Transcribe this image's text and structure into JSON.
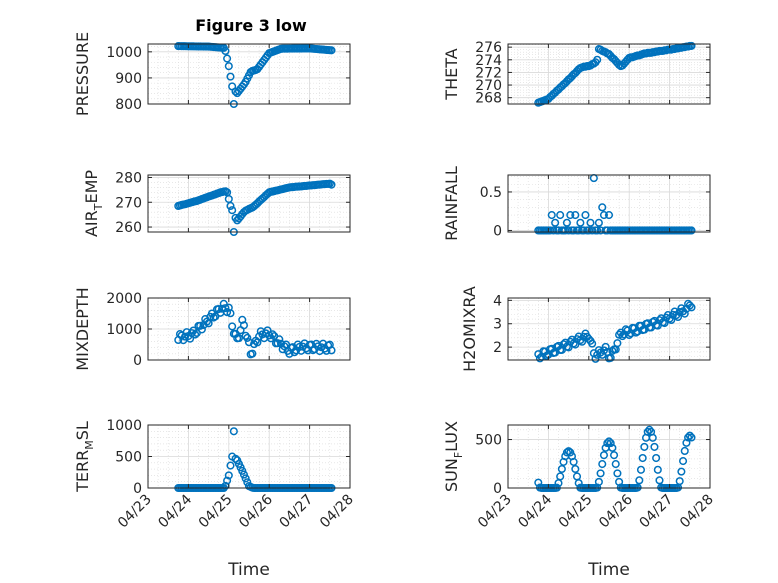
{
  "figure": {
    "title": "Figure 3 low"
  },
  "style": {
    "marker_color": "#0072bd",
    "grid_color": "#d9d9d9",
    "axis_color": "#262626"
  },
  "chart_data": [
    {
      "type": "scatter",
      "ylabel": "PRESSURE",
      "xlim": [
        "2023-04-23",
        "2023-04-28"
      ],
      "ylim": [
        800,
        1030
      ],
      "yticks": [
        800,
        900,
        1000
      ],
      "xticklabels": [],
      "xlabel": "",
      "grid": true,
      "series": [
        {
          "x": [],
          "y": []
        }
      ]
    },
    {
      "type": "scatter",
      "ylabel": "THETA",
      "xlim": [
        "2023-04-23",
        "2023-04-28"
      ],
      "ylim": [
        267,
        276.5
      ],
      "yticks": [
        268,
        270,
        272,
        274,
        276
      ],
      "xticklabels": [],
      "xlabel": "",
      "grid": true,
      "series": [
        {
          "x": [],
          "y": []
        }
      ]
    },
    {
      "type": "scatter",
      "ylabel": "AIR_TEMP",
      "ylabel_main": "AIR",
      "ylabel_sub": "T",
      "ylabel_rest": "EMP",
      "xlim": [
        "2023-04-23",
        "2023-04-28"
      ],
      "ylim": [
        258,
        281
      ],
      "yticks": [
        260,
        270,
        280
      ],
      "xticklabels": [],
      "xlabel": "",
      "grid": true,
      "series": [
        {
          "x": [],
          "y": []
        }
      ]
    },
    {
      "type": "scatter",
      "ylabel": "RAINFALL",
      "xlim": [
        "2023-04-23",
        "2023-04-28"
      ],
      "ylim": [
        -0.02,
        0.72
      ],
      "yticks": [
        0,
        0.5
      ],
      "xticklabels": [],
      "xlabel": "",
      "grid": true,
      "series": [
        {
          "x": [],
          "y": []
        }
      ]
    },
    {
      "type": "scatter",
      "ylabel": "MIXDEPTH",
      "xlim": [
        "2023-04-23",
        "2023-04-28"
      ],
      "ylim": [
        0,
        2000
      ],
      "yticks": [
        0,
        1000,
        2000
      ],
      "xticklabels": [],
      "xlabel": "",
      "grid": true,
      "series": [
        {
          "x": [],
          "y": []
        }
      ]
    },
    {
      "type": "scatter",
      "ylabel": "H2OMIXRA",
      "xlim": [
        "2023-04-23",
        "2023-04-28"
      ],
      "ylim": [
        1.45,
        4.1
      ],
      "yticks": [
        2,
        3,
        4
      ],
      "xticklabels": [],
      "xlabel": "",
      "grid": true,
      "series": [
        {
          "x": [],
          "y": []
        }
      ]
    },
    {
      "type": "scatter",
      "ylabel": "TERR_MSL",
      "ylabel_main": "TERR",
      "ylabel_sub": "M",
      "ylabel_rest": "SL",
      "xlim": [
        "2023-04-23",
        "2023-04-28"
      ],
      "ylim": [
        0,
        1000
      ],
      "yticks": [
        0,
        500,
        1000
      ],
      "xticklabels": [
        "04/23",
        "04/24",
        "04/25",
        "04/26",
        "04/27",
        "04/28"
      ],
      "xlabel": "Time",
      "grid": true,
      "series": [
        {
          "x": [],
          "y": []
        }
      ]
    },
    {
      "type": "scatter",
      "ylabel": "SUN_FLUX",
      "ylabel_main": "SUN",
      "ylabel_sub": "F",
      "ylabel_rest": "LUX",
      "xlim": [
        "2023-04-23",
        "2023-04-28"
      ],
      "ylim": [
        0,
        650
      ],
      "yticks": [
        0,
        500
      ],
      "xticklabels": [
        "04/23",
        "04/24",
        "04/25",
        "04/26",
        "04/27",
        "04/28"
      ],
      "xlabel": "Time",
      "grid": true,
      "series": [
        {
          "x": [],
          "y": []
        }
      ]
    }
  ]
}
